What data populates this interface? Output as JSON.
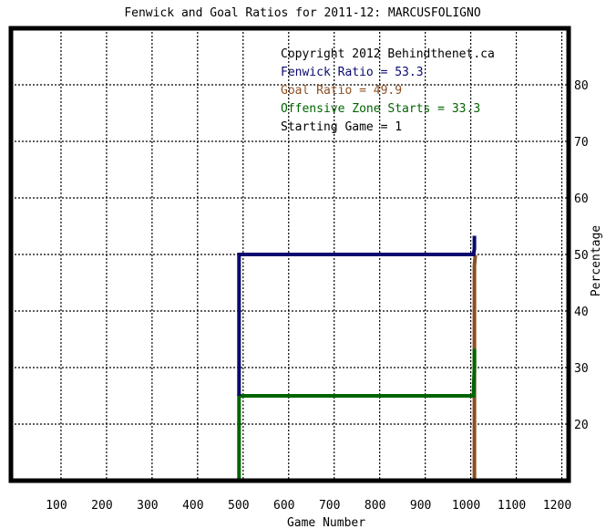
{
  "chart_data": {
    "type": "line",
    "title": "Fenwick and Goal Ratios for 2011-12: MARCUSFOLIGNO",
    "xlabel": "Game Number",
    "ylabel": "Percentage",
    "xlim": [
      0,
      1225
    ],
    "ylim": [
      10,
      90
    ],
    "xticks": [
      100,
      200,
      300,
      400,
      500,
      600,
      700,
      800,
      900,
      1000,
      1100,
      1200
    ],
    "yticks": [
      20,
      30,
      40,
      50,
      60,
      70,
      80
    ],
    "grid": true,
    "annotations": [
      {
        "text": "Copyright 2012 Behindthenet.ca",
        "color": "#000000"
      },
      {
        "text": "Fenwick Ratio = 53.3",
        "color": "#0a0a6e"
      },
      {
        "text": "Goal Ratio = 49.9",
        "color": "#8b4f22"
      },
      {
        "text": "Offensive Zone Starts = 33.3",
        "color": "#006400"
      },
      {
        "text": "Starting Game = 1",
        "color": "#000000"
      }
    ],
    "series": [
      {
        "color": "#8b4f22",
        "x": [
          1018,
          1018,
          1019,
          1020,
          1020
        ],
        "y": [
          0,
          48.0,
          49.0,
          49.9,
          49.9
        ]
      },
      {
        "color": "#006400",
        "x": [
          501,
          501,
          502,
          1015,
          1016,
          1017,
          1018,
          1018
        ],
        "y": [
          0,
          25.0,
          25.0,
          25.0,
          25.0,
          28.0,
          30.0,
          33.3
        ]
      },
      {
        "color": "#0a0a6e",
        "x": [
          501,
          501,
          502,
          1015,
          1016,
          1017,
          1018,
          1018
        ],
        "y": [
          25.0,
          50.0,
          50.0,
          50.0,
          50.0,
          50.5,
          51.0,
          53.3
        ]
      }
    ]
  }
}
